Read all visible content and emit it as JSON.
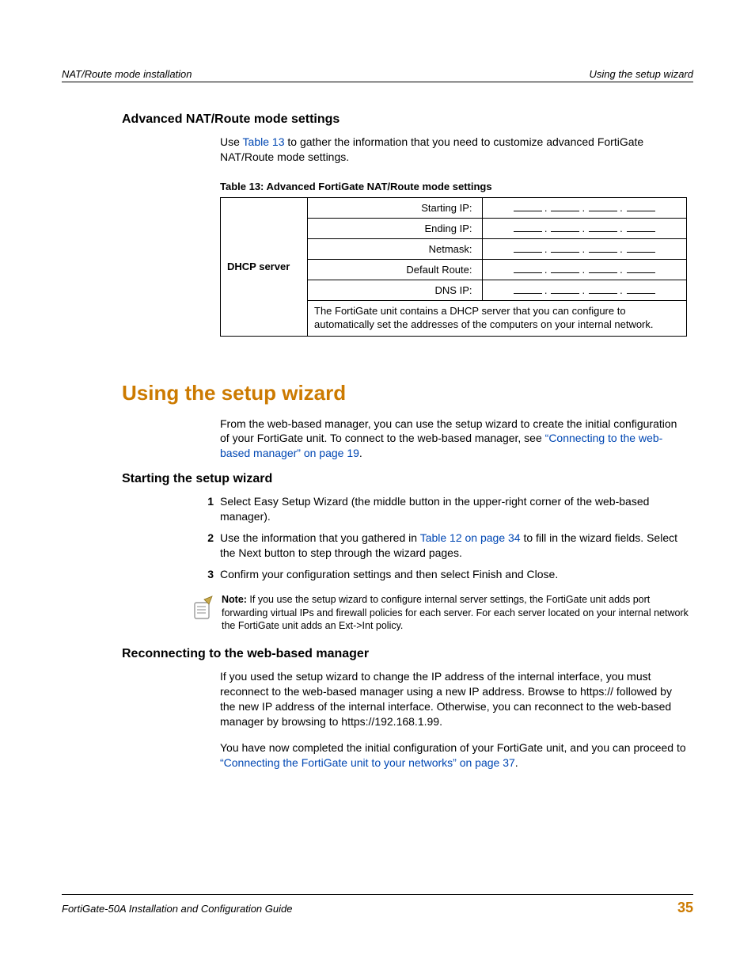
{
  "header": {
    "left": "NAT/Route mode installation",
    "right": "Using the setup wizard"
  },
  "section1": {
    "heading": "Advanced NAT/Route mode settings",
    "intro_a": "Use ",
    "intro_link": "Table 13",
    "intro_b": " to gather the information that you need to customize advanced FortiGate NAT/Route mode settings.",
    "table_caption": "Table 13: Advanced FortiGate NAT/Route mode settings",
    "table": {
      "rowlabel": "DHCP server",
      "fields": [
        "Starting IP:",
        "Ending IP:",
        "Netmask:",
        "Default Route:",
        "DNS IP:"
      ],
      "desc": "The FortiGate unit contains a DHCP server that you can configure to automatically set the addresses of the computers on your internal network."
    }
  },
  "section2": {
    "heading": "Using the setup wizard",
    "intro_a": "From the web-based manager, you can use the setup wizard to create the initial configuration of your FortiGate unit. To connect to the web-based manager, see ",
    "intro_link": "“Connecting to the web-based manager” on page 19",
    "intro_b": "."
  },
  "section3": {
    "heading": "Starting the setup wizard",
    "steps": [
      {
        "n": "1",
        "a": "Select Easy Setup Wizard (the middle button in the upper-right corner of the web-based manager).",
        "link": "",
        "b": ""
      },
      {
        "n": "2",
        "a": "Use the information that you gathered in ",
        "link": "Table 12 on page 34",
        "b": " to fill in the wizard fields. Select the Next button to step through the wizard pages."
      },
      {
        "n": "3",
        "a": "Confirm your configuration settings and then select Finish and Close.",
        "link": "",
        "b": ""
      }
    ],
    "note_label": "Note:",
    "note_text": " If you use the setup wizard to configure internal server settings, the FortiGate unit adds port forwarding virtual IPs and firewall policies for each server. For each server located on your internal network the FortiGate unit adds an Ext‑>Int policy."
  },
  "section4": {
    "heading": "Reconnecting to the web-based manager",
    "p1": "If you used the setup wizard to change the IP address of the internal interface, you must reconnect to the web-based manager using a new IP address. Browse to https:// followed by the new IP address of the internal interface. Otherwise, you can reconnect to the web-based manager by browsing to https://192.168.1.99.",
    "p2a": "You have now completed the initial configuration of your FortiGate unit, and you can proceed to ",
    "p2link": "“Connecting the FortiGate unit to your networks” on page 37",
    "p2b": "."
  },
  "footer": {
    "title": "FortiGate-50A Installation and Configuration Guide",
    "page": "35"
  },
  "colors": {
    "accent": "#cc7a00",
    "link": "#0047b3"
  }
}
